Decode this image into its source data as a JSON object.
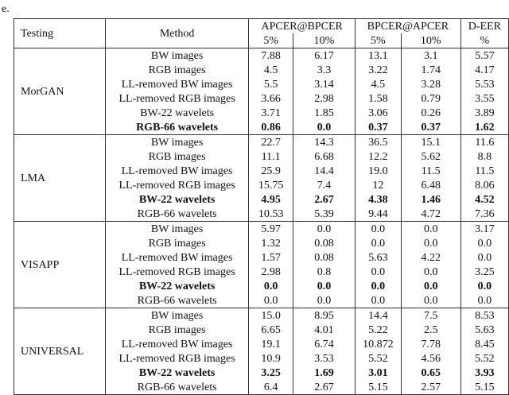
{
  "fragment_text": "e.",
  "header": {
    "testing": "Testing",
    "method": "Method",
    "groups": [
      "APCER@BPCER",
      "BPCER@APCER",
      "D-EER"
    ],
    "subheaders": [
      "5%",
      "10%",
      "5%",
      "10%",
      "%"
    ]
  },
  "groups": [
    {
      "name": "MorGAN",
      "rows": [
        {
          "method": "BW images",
          "values": [
            "7.88",
            "6.17",
            "13.1",
            "3.1",
            "5.57"
          ],
          "bold": false
        },
        {
          "method": "RGB images",
          "values": [
            "4.5",
            "3.3",
            "3.22",
            "1.74",
            "4.17"
          ],
          "bold": false
        },
        {
          "method": "LL-removed BW images",
          "values": [
            "5.5",
            "3.14",
            "4.5",
            "3.28",
            "5.53"
          ],
          "bold": false
        },
        {
          "method": "LL-removed RGB images",
          "values": [
            "3.66",
            "2.98",
            "1.58",
            "0.79",
            "3.55"
          ],
          "bold": false
        },
        {
          "method": "BW-22 wavelets",
          "values": [
            "3.71",
            "1.85",
            "3.06",
            "0.26",
            "3.89"
          ],
          "bold": false
        },
        {
          "method": "RGB-66 wavelets",
          "values": [
            "0.86",
            "0.0",
            "0.37",
            "0.37",
            "1.62"
          ],
          "bold": true
        }
      ]
    },
    {
      "name": "LMA",
      "rows": [
        {
          "method": "BW images",
          "values": [
            "22.7",
            "14.3",
            "36.5",
            "15.1",
            "11.6"
          ],
          "bold": false
        },
        {
          "method": "RGB images",
          "values": [
            "11.1",
            "6.68",
            "12.2",
            "5.62",
            "8.8"
          ],
          "bold": false
        },
        {
          "method": "LL-removed BW images",
          "values": [
            "25.9",
            "14.4",
            "19.0",
            "11.5",
            "11.5"
          ],
          "bold": false
        },
        {
          "method": "LL-removed RGB images",
          "values": [
            "15.75",
            "7.4",
            "12",
            "6.48",
            "8.06"
          ],
          "bold": false
        },
        {
          "method": "BW-22 wavelets",
          "values": [
            "4.95",
            "2.67",
            "4.38",
            "1.46",
            "4.52"
          ],
          "bold": true
        },
        {
          "method": "RGB-66 wavelets",
          "values": [
            "10.53",
            "5.39",
            "9.44",
            "4.72",
            "7.36"
          ],
          "bold": false
        }
      ]
    },
    {
      "name": "VISAPP",
      "rows": [
        {
          "method": "BW images",
          "values": [
            "5.97",
            "0.0",
            "0.0",
            "0.0",
            "3.17"
          ],
          "bold": false
        },
        {
          "method": "RGB images",
          "values": [
            "1.32",
            "0.08",
            "0.0",
            "0.0",
            "0.0"
          ],
          "bold": false
        },
        {
          "method": "LL-removed BW images",
          "values": [
            "1.57",
            "0.08",
            "5.63",
            "4.22",
            "0.0"
          ],
          "bold": false
        },
        {
          "method": "LL-removed RGB images",
          "values": [
            "2.98",
            "0.8",
            "0.0",
            "0.0",
            "3.25"
          ],
          "bold": false
        },
        {
          "method": "BW-22 wavelets",
          "values": [
            "0.0",
            "0.0",
            "0.0",
            "0.0",
            "0.0"
          ],
          "bold": true
        },
        {
          "method": "RGB-66 wavelets",
          "values": [
            "0.0",
            "0.0",
            "0.0",
            "0.0",
            "0.0"
          ],
          "bold": false
        }
      ]
    },
    {
      "name": "UNIVERSAL",
      "rows": [
        {
          "method": "BW images",
          "values": [
            "15.0",
            "8.95",
            "14.4",
            "7.5",
            "8.53"
          ],
          "bold": false
        },
        {
          "method": "RGB images",
          "values": [
            "6.65",
            "4.01",
            "5.22",
            "2.5",
            "5.63"
          ],
          "bold": false
        },
        {
          "method": "LL-removed BW images",
          "values": [
            "19.1",
            "6.74",
            "10.872",
            "7.78",
            "8.45"
          ],
          "bold": false
        },
        {
          "method": "LL-removed RGB images",
          "values": [
            "10.9",
            "3.53",
            "5.52",
            "4.56",
            "5.52"
          ],
          "bold": false
        },
        {
          "method": "BW-22 wavelets",
          "values": [
            "3.25",
            "1.69",
            "3.01",
            "0.65",
            "3.93"
          ],
          "bold": true
        },
        {
          "method": "RGB-66 wavelets",
          "values": [
            "6.4",
            "2.67",
            "5.15",
            "2.57",
            "5.15"
          ],
          "bold": false
        }
      ]
    }
  ]
}
